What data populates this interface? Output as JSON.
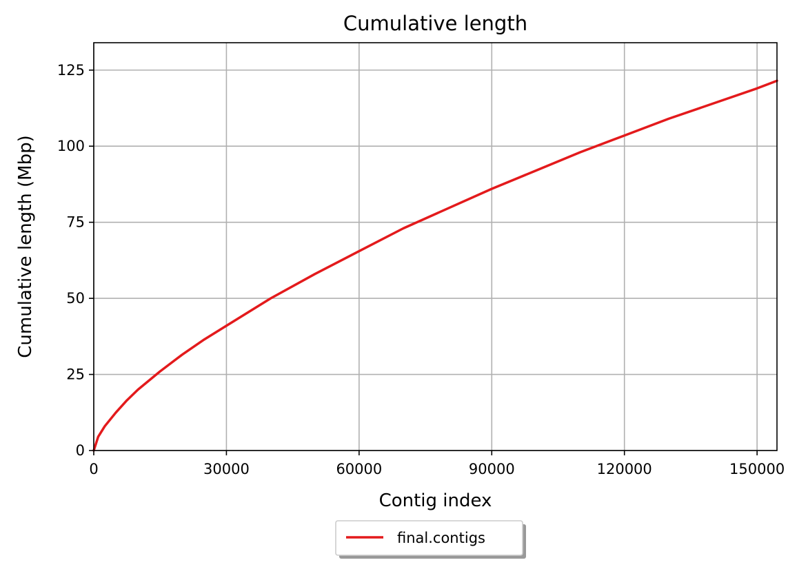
{
  "chart_data": {
    "type": "line",
    "title": "Cumulative length",
    "xlabel": "Contig index",
    "ylabel": "Cumulative length (Mbp)",
    "xlim": [
      0,
      154500
    ],
    "ylim": [
      0,
      134
    ],
    "xticks": [
      0,
      30000,
      60000,
      90000,
      120000,
      150000
    ],
    "yticks": [
      0,
      25,
      50,
      75,
      100,
      125
    ],
    "grid": true,
    "legend_position": "bottom-center, below plot",
    "series": [
      {
        "name": "final.contigs",
        "color": "#e31a1c",
        "x": [
          0,
          1000,
          2500,
          5000,
          7500,
          10000,
          15000,
          20000,
          25000,
          30000,
          40000,
          50000,
          60000,
          70000,
          80000,
          90000,
          100000,
          110000,
          120000,
          130000,
          140000,
          150000,
          154500
        ],
        "y": [
          0,
          4.5,
          8.0,
          12.5,
          16.5,
          20.0,
          26.0,
          31.5,
          36.5,
          41.0,
          50.0,
          58.0,
          65.5,
          73.0,
          79.5,
          86.0,
          92.0,
          98.0,
          103.5,
          109.0,
          114.0,
          119.0,
          121.5
        ]
      }
    ]
  }
}
